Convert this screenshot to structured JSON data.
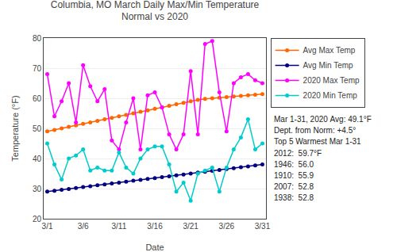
{
  "chart_data": {
    "type": "line",
    "title": "Columbia, MO March Daily Max/Min Temperature\nNormal vs 2020",
    "x_label": "Date",
    "y_label": "Temperature (°F)",
    "x": [
      1,
      2,
      3,
      4,
      5,
      6,
      7,
      8,
      9,
      10,
      11,
      12,
      13,
      14,
      15,
      16,
      17,
      18,
      19,
      20,
      21,
      22,
      23,
      24,
      25,
      26,
      27,
      28,
      29,
      30,
      31
    ],
    "xlim": [
      0.5,
      31.5
    ],
    "xticks": [
      {
        "value": 1,
        "label": "3/1"
      },
      {
        "value": 6,
        "label": "3/6"
      },
      {
        "value": 11,
        "label": "3/11"
      },
      {
        "value": 16,
        "label": "3/16"
      },
      {
        "value": 21,
        "label": "3/21"
      },
      {
        "value": 26,
        "label": "3/26"
      },
      {
        "value": 31,
        "label": "3/31"
      }
    ],
    "ylim": [
      20,
      80
    ],
    "yticks": [
      20,
      30,
      40,
      50,
      60,
      70,
      80
    ],
    "grid": "y",
    "legend": "right",
    "marker": "circle",
    "line_style": "solid",
    "series": [
      {
        "name": "Avg Max Temp",
        "color": "#ff6600",
        "values": [
          49.0,
          49.5,
          50.0,
          50.5,
          51.0,
          51.5,
          52.0,
          52.5,
          53.0,
          53.5,
          54.0,
          54.5,
          55.0,
          55.5,
          56.0,
          56.5,
          57.0,
          57.5,
          58.0,
          58.5,
          59.0,
          59.5,
          59.8,
          60.0,
          60.2,
          60.4,
          60.6,
          60.8,
          61.0,
          61.2,
          61.4
        ]
      },
      {
        "name": "Avg Min Temp",
        "color": "#000080",
        "values": [
          29.0,
          29.3,
          29.6,
          29.9,
          30.2,
          30.5,
          30.8,
          31.1,
          31.4,
          31.7,
          32.0,
          32.3,
          32.6,
          32.9,
          33.2,
          33.5,
          33.8,
          34.1,
          34.4,
          34.7,
          35.0,
          35.3,
          35.6,
          35.9,
          36.2,
          36.5,
          36.8,
          37.1,
          37.4,
          37.7,
          38.0
        ]
      },
      {
        "name": "2020 Max Temp",
        "color": "#ff00ff",
        "values": [
          68,
          54,
          59,
          65,
          52,
          71,
          64,
          59,
          63,
          46,
          43,
          52,
          60,
          43,
          61,
          62,
          57,
          48,
          43,
          48,
          69,
          48,
          78,
          79,
          62,
          49,
          65,
          67,
          68,
          66,
          65
        ]
      },
      {
        "name": "2020 Min Temp",
        "color": "#00cccc",
        "values": [
          45,
          38,
          33,
          40,
          41,
          43,
          36,
          37,
          36,
          36,
          42,
          37,
          35,
          40,
          43,
          44,
          44,
          38,
          29,
          32,
          26,
          35,
          36,
          37,
          29,
          37,
          43,
          47,
          53,
          43,
          45
        ]
      }
    ],
    "annotations": [
      "Mar 1-31, 2020 Avg: 49.1°F",
      "Dept. from Norm: +4.5°",
      "Top 5 Warmest Mar 1-31",
      "2012:  59.7°F",
      "1946:  56.0",
      "1910:  55.9",
      "2007:  52.8",
      "1938:  52.8"
    ]
  }
}
